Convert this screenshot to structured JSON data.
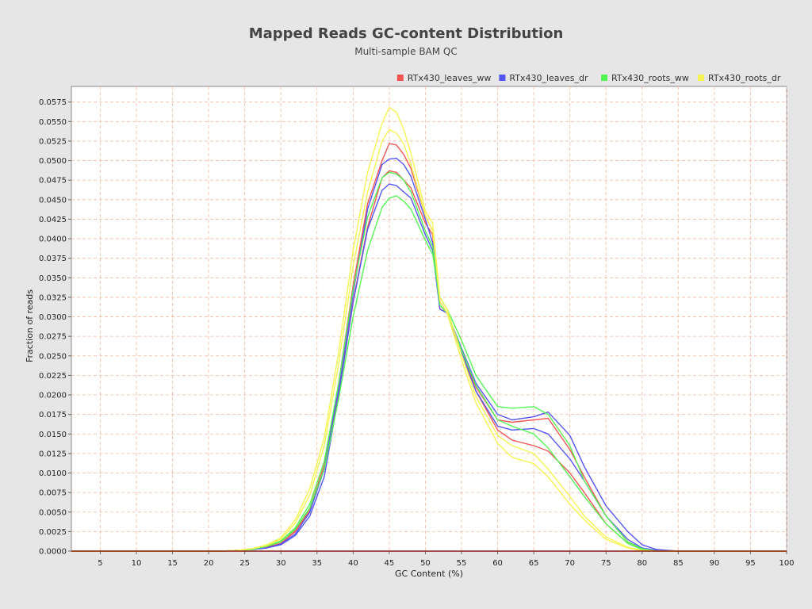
{
  "chart_data": {
    "type": "line",
    "title": "Mapped Reads GC-content Distribution",
    "subtitle": "Multi-sample BAM QC",
    "xlabel": "GC Content (%)",
    "ylabel": "Fraction of reads",
    "xlim": [
      1,
      100
    ],
    "ylim": [
      0,
      0.0595
    ],
    "xticks": [
      5,
      10,
      15,
      20,
      25,
      30,
      35,
      40,
      45,
      50,
      55,
      60,
      65,
      70,
      75,
      80,
      85,
      90,
      95,
      100
    ],
    "yticks": [
      "0.0000",
      "0.0025",
      "0.0050",
      "0.0075",
      "0.0100",
      "0.0125",
      "0.0150",
      "0.0175",
      "0.0200",
      "0.0225",
      "0.0250",
      "0.0275",
      "0.0300",
      "0.0325",
      "0.0350",
      "0.0375",
      "0.0400",
      "0.0425",
      "0.0450",
      "0.0475",
      "0.0500",
      "0.0525",
      "0.0550",
      "0.0575"
    ],
    "grid": true,
    "legend_position": "top-right",
    "legend": [
      {
        "label": "RTx430_leaves_ww",
        "color": "#f55555"
      },
      {
        "label": "RTx430_leaves_dr",
        "color": "#5555f5"
      },
      {
        "label": "RTx430_roots_ww",
        "color": "#55f555"
      },
      {
        "label": "RTx430_roots_dr",
        "color": "#f5f555"
      }
    ],
    "series": [
      {
        "color": "#f55555",
        "x": [
          1,
          22,
          24,
          26,
          28,
          30,
          32,
          34,
          36,
          38,
          40,
          42,
          44,
          45,
          46,
          47,
          48,
          50,
          51,
          52,
          53,
          55,
          57,
          60,
          62,
          65,
          67,
          70,
          72,
          75,
          78,
          80,
          82,
          85,
          100
        ],
        "y": [
          0,
          0,
          0.0001,
          0.0002,
          0.0005,
          0.001,
          0.0025,
          0.0052,
          0.0105,
          0.0205,
          0.032,
          0.0415,
          0.0478,
          0.0487,
          0.0485,
          0.0475,
          0.0465,
          0.042,
          0.0405,
          0.032,
          0.0305,
          0.0255,
          0.021,
          0.0168,
          0.0165,
          0.0168,
          0.017,
          0.013,
          0.0095,
          0.0045,
          0.0012,
          0.0003,
          0,
          0,
          0
        ]
      },
      {
        "color": "#f55555",
        "x": [
          1,
          22,
          24,
          26,
          28,
          30,
          32,
          34,
          36,
          38,
          40,
          42,
          44,
          45,
          46,
          47,
          48,
          50,
          51,
          52,
          53,
          55,
          57,
          60,
          62,
          65,
          67,
          70,
          72,
          75,
          78,
          80,
          82,
          85,
          100
        ],
        "y": [
          0,
          0,
          0.0001,
          0.0002,
          0.0005,
          0.001,
          0.0026,
          0.0055,
          0.011,
          0.0215,
          0.034,
          0.0445,
          0.05,
          0.0522,
          0.052,
          0.0508,
          0.049,
          0.043,
          0.041,
          0.031,
          0.0305,
          0.0253,
          0.0205,
          0.0155,
          0.0142,
          0.0135,
          0.0128,
          0.01,
          0.0075,
          0.0035,
          0.001,
          0.0002,
          0,
          0,
          0
        ]
      },
      {
        "color": "#5555f5",
        "x": [
          1,
          22,
          24,
          26,
          28,
          30,
          32,
          34,
          36,
          38,
          40,
          42,
          44,
          45,
          46,
          47,
          48,
          50,
          51,
          52,
          53,
          55,
          57,
          60,
          62,
          65,
          67,
          70,
          72,
          75,
          78,
          80,
          82,
          85,
          100
        ],
        "y": [
          0,
          0,
          0.0001,
          0.0002,
          0.0004,
          0.0008,
          0.002,
          0.0045,
          0.0095,
          0.02,
          0.0318,
          0.0412,
          0.0462,
          0.047,
          0.0468,
          0.046,
          0.0452,
          0.0405,
          0.0385,
          0.031,
          0.0305,
          0.026,
          0.0215,
          0.0175,
          0.0168,
          0.0172,
          0.0178,
          0.0148,
          0.0108,
          0.0058,
          0.0025,
          0.0008,
          0.0002,
          0,
          0
        ]
      },
      {
        "color": "#5555f5",
        "x": [
          1,
          22,
          24,
          26,
          28,
          30,
          32,
          34,
          36,
          38,
          40,
          42,
          44,
          45,
          46,
          47,
          48,
          50,
          51,
          52,
          53,
          55,
          57,
          60,
          62,
          65,
          67,
          70,
          72,
          75,
          78,
          80,
          82,
          85,
          100
        ],
        "y": [
          0,
          0,
          0.0001,
          0.0002,
          0.0004,
          0.0009,
          0.0022,
          0.005,
          0.0105,
          0.021,
          0.033,
          0.0438,
          0.0495,
          0.0502,
          0.0503,
          0.0495,
          0.048,
          0.0425,
          0.0395,
          0.0315,
          0.0305,
          0.0255,
          0.0205,
          0.016,
          0.0155,
          0.0157,
          0.015,
          0.0118,
          0.009,
          0.0045,
          0.0015,
          0.0004,
          0.0001,
          0,
          0
        ]
      },
      {
        "color": "#55f555",
        "x": [
          1,
          22,
          24,
          26,
          28,
          30,
          32,
          34,
          36,
          38,
          40,
          42,
          44,
          45,
          46,
          47,
          48,
          50,
          51,
          52,
          53,
          55,
          57,
          60,
          62,
          65,
          67,
          70,
          72,
          75,
          78,
          80,
          82,
          85,
          100
        ],
        "y": [
          0,
          0,
          0.0001,
          0.0002,
          0.0006,
          0.0012,
          0.0028,
          0.0055,
          0.0105,
          0.0195,
          0.03,
          0.0385,
          0.044,
          0.0452,
          0.0455,
          0.0448,
          0.0438,
          0.0398,
          0.038,
          0.0325,
          0.031,
          0.027,
          0.0225,
          0.0185,
          0.0183,
          0.0185,
          0.0175,
          0.0135,
          0.009,
          0.0045,
          0.0012,
          0.0003,
          0,
          0,
          0
        ]
      },
      {
        "color": "#55f555",
        "x": [
          1,
          22,
          24,
          26,
          28,
          30,
          32,
          34,
          36,
          38,
          40,
          42,
          44,
          45,
          46,
          47,
          48,
          50,
          51,
          52,
          53,
          55,
          57,
          60,
          62,
          65,
          67,
          70,
          72,
          75,
          78,
          80,
          82,
          85,
          100
        ],
        "y": [
          0,
          0,
          0.0001,
          0.0002,
          0.0006,
          0.0013,
          0.003,
          0.006,
          0.0115,
          0.0215,
          0.0335,
          0.0428,
          0.0478,
          0.0485,
          0.0483,
          0.0475,
          0.046,
          0.041,
          0.039,
          0.0315,
          0.0305,
          0.0258,
          0.0212,
          0.0168,
          0.016,
          0.015,
          0.0132,
          0.0095,
          0.007,
          0.0035,
          0.001,
          0.0002,
          0,
          0,
          0
        ]
      },
      {
        "color": "#f5f555",
        "x": [
          1,
          22,
          24,
          26,
          28,
          30,
          32,
          34,
          36,
          38,
          40,
          42,
          44,
          45,
          46,
          47,
          48,
          50,
          51,
          52,
          53,
          55,
          57,
          60,
          62,
          65,
          67,
          70,
          72,
          75,
          78,
          80,
          82,
          85,
          100
        ],
        "y": [
          0,
          0,
          0.0001,
          0.0003,
          0.0008,
          0.0017,
          0.004,
          0.008,
          0.0145,
          0.0255,
          0.0385,
          0.0485,
          0.0548,
          0.0568,
          0.0562,
          0.054,
          0.051,
          0.0435,
          0.042,
          0.0325,
          0.031,
          0.0252,
          0.0198,
          0.0148,
          0.0135,
          0.0125,
          0.0105,
          0.007,
          0.0045,
          0.0018,
          0.0005,
          0.0001,
          0,
          0,
          0
        ]
      },
      {
        "color": "#f5f555",
        "x": [
          1,
          22,
          24,
          26,
          28,
          30,
          32,
          34,
          36,
          38,
          40,
          42,
          44,
          45,
          46,
          47,
          48,
          50,
          51,
          52,
          53,
          55,
          57,
          60,
          62,
          65,
          67,
          70,
          72,
          75,
          78,
          80,
          82,
          85,
          100
        ],
        "y": [
          0,
          0,
          0.0001,
          0.0003,
          0.0007,
          0.0015,
          0.0036,
          0.0072,
          0.0135,
          0.024,
          0.0365,
          0.046,
          0.0525,
          0.054,
          0.0535,
          0.0522,
          0.0495,
          0.043,
          0.041,
          0.032,
          0.0305,
          0.0245,
          0.019,
          0.0138,
          0.012,
          0.0112,
          0.0095,
          0.006,
          0.004,
          0.0015,
          0.0004,
          0,
          0,
          0,
          0
        ]
      }
    ]
  }
}
